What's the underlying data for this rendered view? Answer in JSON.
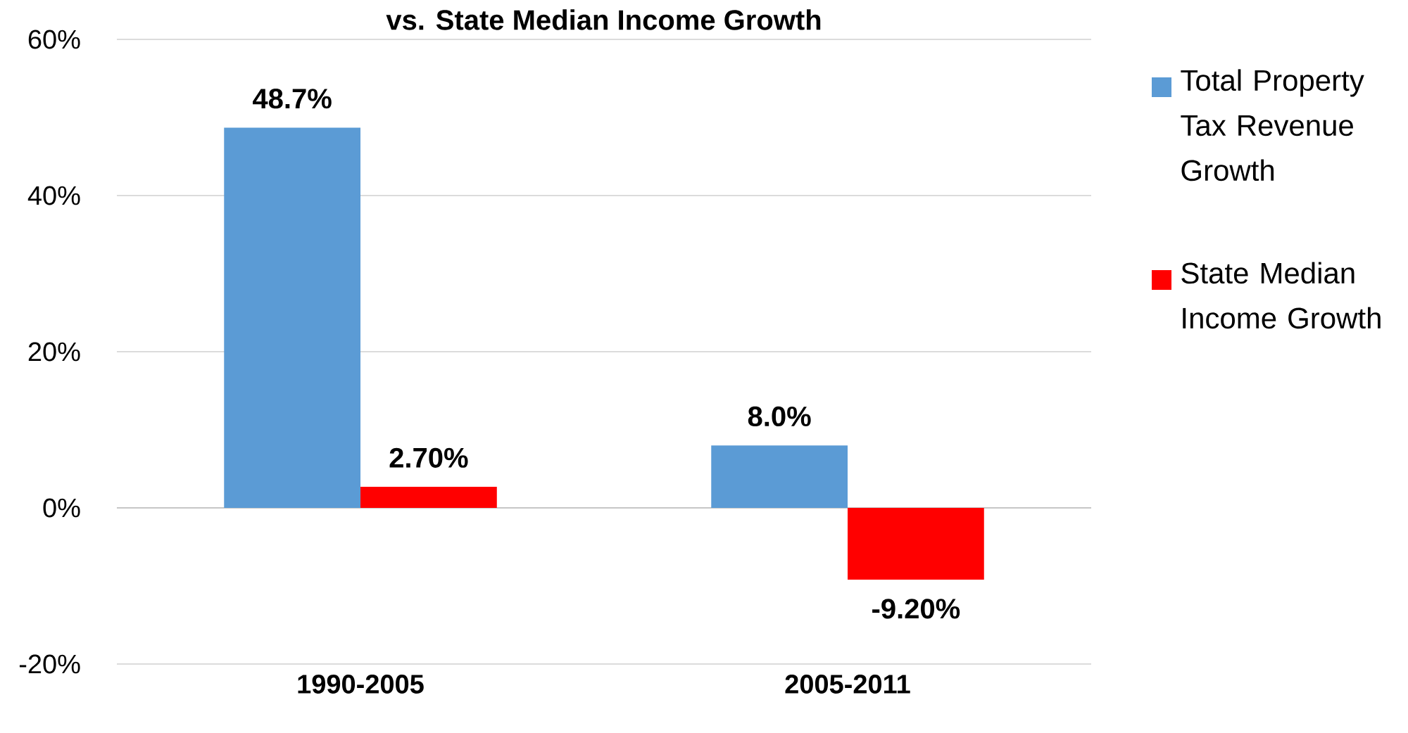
{
  "chart_data": {
    "type": "bar",
    "title": "vs. State Median Income Growth",
    "categories": [
      "1990-2005",
      "2005-2011"
    ],
    "series": [
      {
        "name": "Total Property Tax Revenue Growth",
        "color": "#5b9bd5",
        "values": [
          48.7,
          8.0
        ],
        "value_labels": [
          "48.7%",
          "8.0%"
        ]
      },
      {
        "name": "State Median Income Growth",
        "color": "#ff0000",
        "values": [
          2.7,
          -9.2
        ],
        "value_labels": [
          "2.70%",
          "-9.20%"
        ]
      }
    ],
    "ylim": [
      -20,
      60
    ],
    "yticks": [
      {
        "value": -20,
        "label": "-20%"
      },
      {
        "value": 0,
        "label": "0%"
      },
      {
        "value": 20,
        "label": "20%"
      },
      {
        "value": 40,
        "label": "40%"
      },
      {
        "value": 60,
        "label": "60%"
      }
    ],
    "grid": "y",
    "legend": "right"
  }
}
